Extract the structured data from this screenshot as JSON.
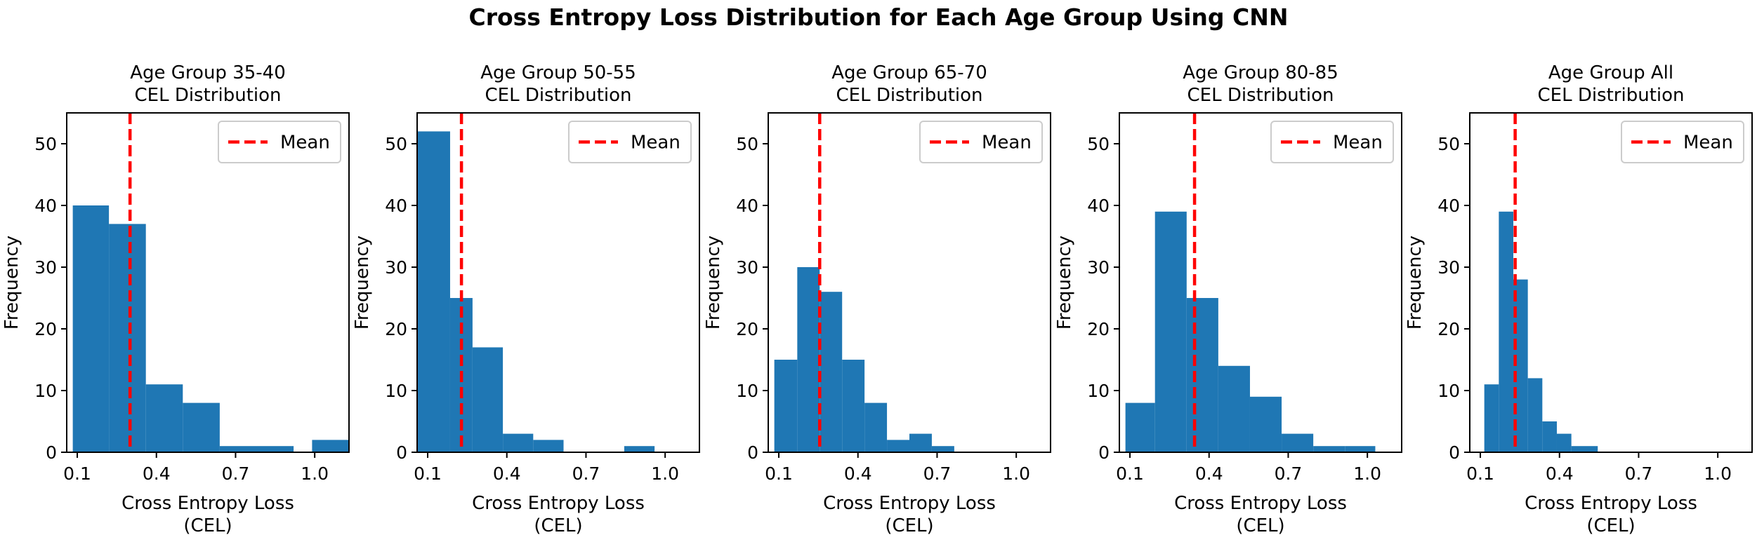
{
  "figure": {
    "title": "Cross Entropy Loss Distribution for Each Age Group Using CNN"
  },
  "colors": {
    "bar": "#1f77b4",
    "mean_line": "#ff0000",
    "axis": "#000000"
  },
  "chart_data": [
    {
      "type": "histogram",
      "title_lines": [
        "Age Group 35-40",
        "CEL Distribution"
      ],
      "xlabel_lines": [
        "Cross Entropy Loss",
        "(CEL)"
      ],
      "ylabel": "Frequency",
      "xlim": [
        0.06,
        1.13
      ],
      "ylim": [
        0,
        55
      ],
      "xticks": [
        0.1,
        0.4,
        0.7,
        1.0
      ],
      "xtick_labels": [
        "0.1",
        "0.4",
        "0.7",
        "1.0"
      ],
      "yticks": [
        0,
        10,
        20,
        30,
        40,
        50
      ],
      "ytick_labels": [
        "0",
        "10",
        "20",
        "30",
        "40",
        "50"
      ],
      "bins": [
        {
          "x0": 0.083,
          "x1": 0.22,
          "count": 40
        },
        {
          "x0": 0.22,
          "x1": 0.36,
          "count": 37
        },
        {
          "x0": 0.36,
          "x1": 0.5,
          "count": 11
        },
        {
          "x0": 0.5,
          "x1": 0.64,
          "count": 8
        },
        {
          "x0": 0.64,
          "x1": 0.78,
          "count": 1
        },
        {
          "x0": 0.78,
          "x1": 0.92,
          "count": 1
        },
        {
          "x0": 0.92,
          "x1": 0.99,
          "count": 0
        },
        {
          "x0": 0.99,
          "x1": 1.13,
          "count": 2
        }
      ],
      "mean": 0.3,
      "legend": {
        "label": "Mean",
        "position": "top-right"
      },
      "grid": false
    },
    {
      "type": "histogram",
      "title_lines": [
        "Age Group 50-55",
        "CEL Distribution"
      ],
      "xlabel_lines": [
        "Cross Entropy Loss",
        "(CEL)"
      ],
      "ylabel": "Frequency",
      "xlim": [
        0.06,
        1.13
      ],
      "ylim": [
        0,
        55
      ],
      "xticks": [
        0.1,
        0.4,
        0.7,
        1.0
      ],
      "xtick_labels": [
        "0.1",
        "0.4",
        "0.7",
        "1.0"
      ],
      "yticks": [
        0,
        10,
        20,
        30,
        40,
        50
      ],
      "ytick_labels": [
        "0",
        "10",
        "20",
        "30",
        "40",
        "50"
      ],
      "bins": [
        {
          "x0": 0.06,
          "x1": 0.185,
          "count": 52
        },
        {
          "x0": 0.185,
          "x1": 0.27,
          "count": 25
        },
        {
          "x0": 0.27,
          "x1": 0.385,
          "count": 17
        },
        {
          "x0": 0.385,
          "x1": 0.5,
          "count": 3
        },
        {
          "x0": 0.5,
          "x1": 0.615,
          "count": 2
        },
        {
          "x0": 0.615,
          "x1": 0.73,
          "count": 0
        },
        {
          "x0": 0.73,
          "x1": 0.845,
          "count": 0
        },
        {
          "x0": 0.845,
          "x1": 0.96,
          "count": 1
        }
      ],
      "mean": 0.228,
      "legend": {
        "label": "Mean",
        "position": "top-right"
      },
      "grid": false
    },
    {
      "type": "histogram",
      "title_lines": [
        "Age Group 65-70",
        "CEL Distribution"
      ],
      "xlabel_lines": [
        "Cross Entropy Loss",
        "(CEL)"
      ],
      "ylabel": "Frequency",
      "xlim": [
        0.06,
        1.13
      ],
      "ylim": [
        0,
        55
      ],
      "xticks": [
        0.1,
        0.4,
        0.7,
        1.0
      ],
      "xtick_labels": [
        "0.1",
        "0.4",
        "0.7",
        "1.0"
      ],
      "yticks": [
        0,
        10,
        20,
        30,
        40,
        50
      ],
      "ytick_labels": [
        "0",
        "10",
        "20",
        "30",
        "40",
        "50"
      ],
      "bins": [
        {
          "x0": 0.083,
          "x1": 0.17,
          "count": 15
        },
        {
          "x0": 0.17,
          "x1": 0.255,
          "count": 30
        },
        {
          "x0": 0.255,
          "x1": 0.34,
          "count": 26
        },
        {
          "x0": 0.34,
          "x1": 0.425,
          "count": 15
        },
        {
          "x0": 0.425,
          "x1": 0.51,
          "count": 8
        },
        {
          "x0": 0.51,
          "x1": 0.595,
          "count": 2
        },
        {
          "x0": 0.595,
          "x1": 0.68,
          "count": 3
        },
        {
          "x0": 0.68,
          "x1": 0.765,
          "count": 1
        }
      ],
      "mean": 0.255,
      "legend": {
        "label": "Mean",
        "position": "top-right"
      },
      "grid": false
    },
    {
      "type": "histogram",
      "title_lines": [
        "Age Group 80-85",
        "CEL Distribution"
      ],
      "xlabel_lines": [
        "Cross Entropy Loss",
        "(CEL)"
      ],
      "ylabel": "Frequency",
      "xlim": [
        0.06,
        1.13
      ],
      "ylim": [
        0,
        55
      ],
      "xticks": [
        0.1,
        0.4,
        0.7,
        1.0
      ],
      "xtick_labels": [
        "0.1",
        "0.4",
        "0.7",
        "1.0"
      ],
      "yticks": [
        0,
        10,
        20,
        30,
        40,
        50
      ],
      "ytick_labels": [
        "0",
        "10",
        "20",
        "30",
        "40",
        "50"
      ],
      "bins": [
        {
          "x0": 0.083,
          "x1": 0.195,
          "count": 8
        },
        {
          "x0": 0.195,
          "x1": 0.315,
          "count": 39
        },
        {
          "x0": 0.315,
          "x1": 0.435,
          "count": 25
        },
        {
          "x0": 0.435,
          "x1": 0.555,
          "count": 14
        },
        {
          "x0": 0.555,
          "x1": 0.675,
          "count": 9
        },
        {
          "x0": 0.675,
          "x1": 0.795,
          "count": 3
        },
        {
          "x0": 0.795,
          "x1": 0.915,
          "count": 1
        },
        {
          "x0": 0.915,
          "x1": 1.03,
          "count": 1
        }
      ],
      "mean": 0.345,
      "legend": {
        "label": "Mean",
        "position": "top-right"
      },
      "grid": false
    },
    {
      "type": "histogram",
      "title_lines": [
        "Age Group All",
        "CEL Distribution"
      ],
      "xlabel_lines": [
        "Cross Entropy Loss",
        "(CEL)"
      ],
      "ylabel": "Frequency",
      "xlim": [
        0.06,
        1.13
      ],
      "ylim": [
        0,
        55
      ],
      "xticks": [
        0.1,
        0.4,
        0.7,
        1.0
      ],
      "xtick_labels": [
        "0.1",
        "0.4",
        "0.7",
        "1.0"
      ],
      "yticks": [
        0,
        10,
        20,
        30,
        40,
        50
      ],
      "ytick_labels": [
        "0",
        "10",
        "20",
        "30",
        "40",
        "50"
      ],
      "bins": [
        {
          "x0": 0.115,
          "x1": 0.17,
          "count": 11
        },
        {
          "x0": 0.17,
          "x1": 0.225,
          "count": 39
        },
        {
          "x0": 0.225,
          "x1": 0.28,
          "count": 28
        },
        {
          "x0": 0.28,
          "x1": 0.335,
          "count": 12
        },
        {
          "x0": 0.335,
          "x1": 0.39,
          "count": 5
        },
        {
          "x0": 0.39,
          "x1": 0.445,
          "count": 3
        },
        {
          "x0": 0.445,
          "x1": 0.545,
          "count": 1
        }
      ],
      "mean": 0.232,
      "legend": {
        "label": "Mean",
        "position": "top-right"
      },
      "grid": false
    }
  ]
}
